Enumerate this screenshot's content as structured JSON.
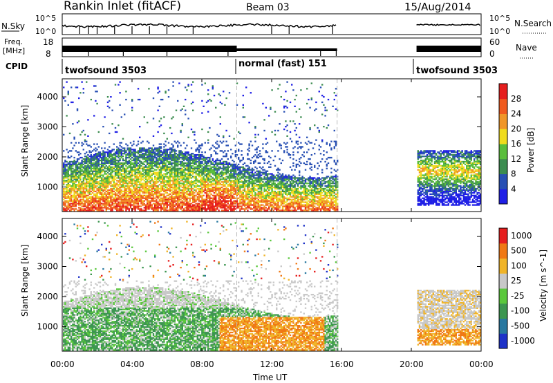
{
  "header": {
    "station": "Rankin Inlet (fitACF)",
    "beam": "Beam 03",
    "date": "15/Aug/2014"
  },
  "panels": {
    "nsky": {
      "label_left": "N.Sky",
      "label_right": "N.Search",
      "left_ticks": [
        "10^5",
        "10^0"
      ],
      "right_ticks": [
        "10^5",
        "10^0"
      ]
    },
    "freq": {
      "label_left_1": "Freq.",
      "label_left_2": "[MHz]",
      "label_right": "Nave",
      "left_ticks": [
        "18",
        "8"
      ],
      "right_ticks": [
        "60",
        "0"
      ]
    },
    "cpid": {
      "label": "CPID",
      "modes": [
        {
          "name": "twofsound 3503",
          "start": "00:00"
        },
        {
          "name": "normal (fast) 151",
          "start": "10:00"
        },
        {
          "name": "twofsound 3503",
          "start": "20:30"
        }
      ]
    }
  },
  "chart_data": [
    {
      "type": "heatmap",
      "title": "",
      "xlabel": "Time UT",
      "ylabel": "Slant Range [km]",
      "xlim_hours": [
        0,
        24
      ],
      "ylim_km": [
        180,
        4600
      ],
      "yticks": [
        "1000",
        "2000",
        "3000",
        "4000"
      ],
      "colorbar_label": "Power [dB]",
      "colorbar_ticks": [
        "4",
        "8",
        "12",
        "16",
        "20",
        "24",
        "28"
      ],
      "colorbar_colors": [
        "#1f1fe6",
        "#2850b4",
        "#3c8c50",
        "#5abe3c",
        "#f0dc1e",
        "#f09628",
        "#f05a1e",
        "#e61e1e"
      ],
      "data_gaps_hours": [
        [
          15.75,
          20.3
        ]
      ]
    },
    {
      "type": "heatmap",
      "title": "",
      "xlabel": "Time UT",
      "ylabel": "Slant Range [km]",
      "xlim_hours": [
        0,
        24
      ],
      "ylim_km": [
        180,
        4600
      ],
      "yticks": [
        "1000",
        "2000",
        "3000",
        "4000"
      ],
      "colorbar_label": "Velocity [m s^-1]",
      "colorbar_ticks": [
        "1000",
        "500",
        "100",
        "25",
        "-25",
        "-100",
        "-500",
        "-1000"
      ],
      "colorbar_colors": [
        "#1e32c8",
        "#2878a0",
        "#3c9650",
        "#5ac83c",
        "#c8c8c8",
        "#f0b428",
        "#f07814",
        "#e61e1e"
      ],
      "data_gaps_hours": [
        [
          15.75,
          20.3
        ]
      ]
    }
  ],
  "xaxis": {
    "ticks": [
      "00:00",
      "04:00",
      "08:00",
      "12:00",
      "16:00",
      "20:00",
      "00:00"
    ],
    "label": "Time UT"
  }
}
